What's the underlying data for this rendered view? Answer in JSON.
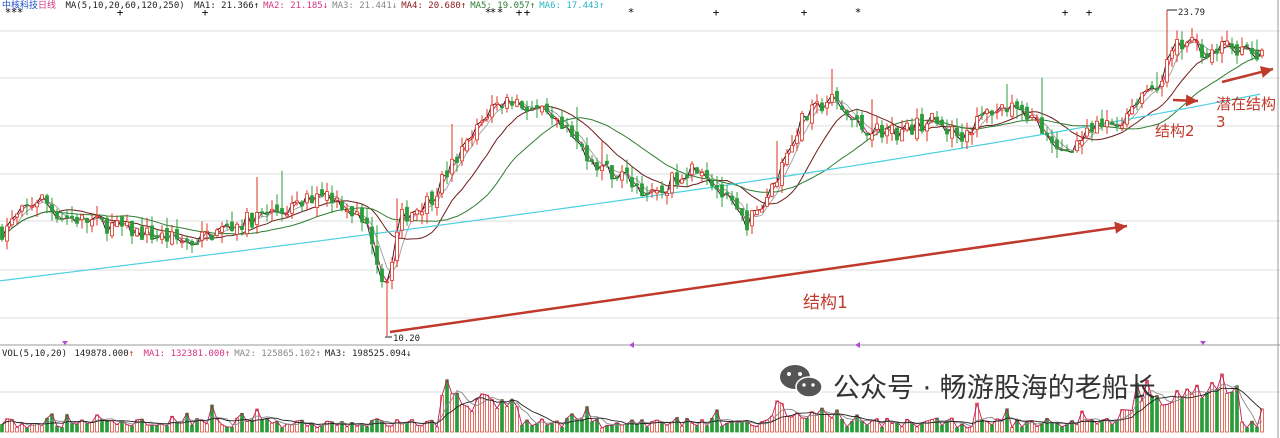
{
  "header": {
    "stock_name": "中核科技",
    "period": "日线",
    "ma_params": "MA(5,10,20,60,120,250)",
    "ma_values": [
      {
        "label": "MA1: 21.366",
        "arrow": "↑",
        "color": "#222222"
      },
      {
        "label": "MA2: 21.185",
        "arrow": "↓",
        "color": "#d63384"
      },
      {
        "label": "MA3: 21.441",
        "arrow": "↓",
        "color": "#888888"
      },
      {
        "label": "MA4: 20.680",
        "arrow": "↑",
        "color": "#8a1a1a"
      },
      {
        "label": "MA5: 19.057",
        "arrow": "↑",
        "color": "#2e7d32"
      },
      {
        "label": "MA6: 17.443",
        "arrow": "↑",
        "color": "#29b6c6"
      }
    ]
  },
  "volume_header": {
    "params": "VOL(5,10,20)",
    "vol": "149878.000",
    "vol_arrow": "↑",
    "ma_values": [
      {
        "label": "MA1: 132381.000",
        "arrow": "↑",
        "color": "#d63384"
      },
      {
        "label": "MA2: 125865.102",
        "arrow": "↑",
        "color": "#888888"
      },
      {
        "label": "MA3: 198525.094",
        "arrow": "↓",
        "color": "#222222"
      }
    ]
  },
  "annotations": {
    "high_label": "23.79",
    "low_label": "10.20",
    "structure1": "结构1",
    "structure2": "结构2",
    "structure3": "潜在结构",
    "structure3_num": "3"
  },
  "watermark": {
    "text": "公众号 · 畅游股海的老船长"
  },
  "colors": {
    "up": "#e0301e",
    "down": "#2a9d3a",
    "arrow": "#c0392b",
    "ma5": "#111111",
    "ma10": "#c2185b",
    "ma20": "#9e9e9e",
    "ma60": "#6d1b1b",
    "ma120": "#2e7d32",
    "ma250": "#4dd0e1",
    "grid": "#dcdcdc"
  },
  "chart_data": {
    "type": "candlestick",
    "high": 23.79,
    "low": 10.2,
    "price_keypoints": [
      [
        0,
        14.5
      ],
      [
        40,
        16.0
      ],
      [
        60,
        15.2
      ],
      [
        100,
        14.9
      ],
      [
        140,
        14.5
      ],
      [
        190,
        14.1
      ],
      [
        220,
        14.6
      ],
      [
        260,
        15.2
      ],
      [
        300,
        15.6
      ],
      [
        320,
        16.3
      ],
      [
        345,
        15.7
      ],
      [
        370,
        14.6
      ],
      [
        385,
        12.2
      ],
      [
        400,
        15.1
      ],
      [
        430,
        15.9
      ],
      [
        450,
        17.2
      ],
      [
        470,
        18.3
      ],
      [
        490,
        19.7
      ],
      [
        510,
        20.1
      ],
      [
        540,
        19.5
      ],
      [
        570,
        18.5
      ],
      [
        600,
        17.3
      ],
      [
        630,
        16.7
      ],
      [
        655,
        15.9
      ],
      [
        680,
        17.0
      ],
      [
        700,
        17.4
      ],
      [
        720,
        16.2
      ],
      [
        745,
        14.9
      ],
      [
        760,
        15.4
      ],
      [
        780,
        17.2
      ],
      [
        800,
        19.1
      ],
      [
        830,
        20.1
      ],
      [
        860,
        18.9
      ],
      [
        900,
        18.7
      ],
      [
        930,
        19.2
      ],
      [
        960,
        18.5
      ],
      [
        990,
        19.6
      ],
      [
        1020,
        19.9
      ],
      [
        1040,
        18.9
      ],
      [
        1055,
        17.8
      ],
      [
        1070,
        18.1
      ],
      [
        1100,
        18.9
      ],
      [
        1120,
        19.1
      ],
      [
        1140,
        20.3
      ],
      [
        1160,
        20.8
      ],
      [
        1175,
        22.2
      ],
      [
        1190,
        22.4
      ],
      [
        1210,
        22.0
      ],
      [
        1230,
        22.3
      ],
      [
        1262,
        21.8
      ]
    ]
  }
}
